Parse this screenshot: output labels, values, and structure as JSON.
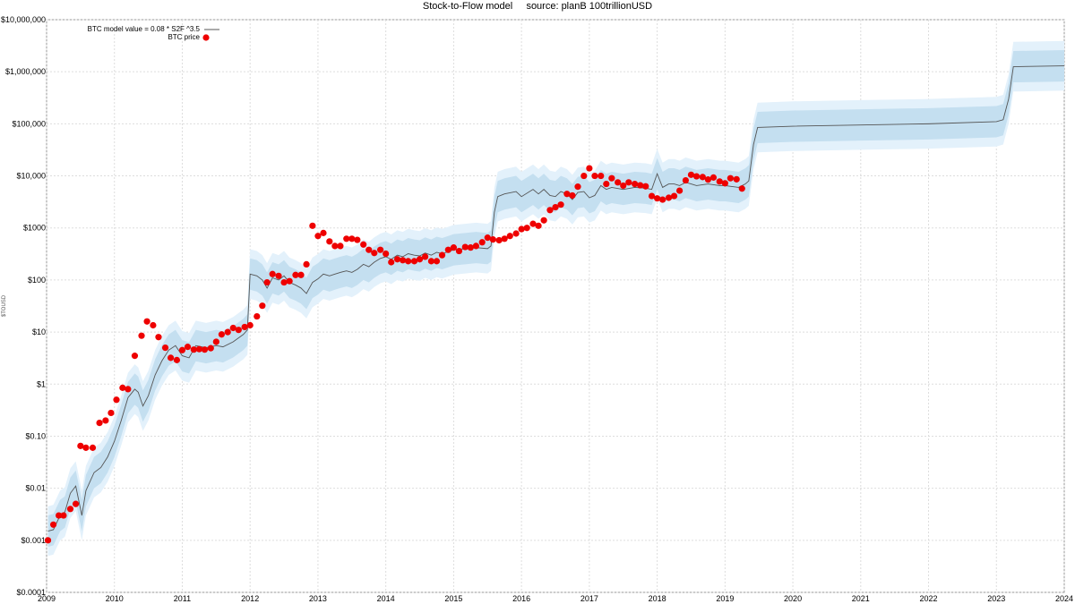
{
  "chart_data": {
    "type": "scatter",
    "title": "Stock-to-Flow model     source: planB 100trillionUSD",
    "ylabel": "$TOUSD",
    "y_scale": "log",
    "ylim": [
      0.0001,
      10000000
    ],
    "xlim": [
      2009.0,
      2024.0
    ],
    "yticks": [
      {
        "value": 10000000,
        "label": "$10,000,000"
      },
      {
        "value": 1000000,
        "label": "$1,000,000"
      },
      {
        "value": 100000,
        "label": "$100,000"
      },
      {
        "value": 10000,
        "label": "$10,000"
      },
      {
        "value": 1000,
        "label": "$1000"
      },
      {
        "value": 100,
        "label": "$100"
      },
      {
        "value": 10,
        "label": "$10"
      },
      {
        "value": 1,
        "label": "$1"
      },
      {
        "value": 0.1,
        "label": "$0.10"
      },
      {
        "value": 0.01,
        "label": "$0.01"
      },
      {
        "value": 0.001,
        "label": "$0.001"
      },
      {
        "value": 0.0001,
        "label": "$0.0001"
      }
    ],
    "xticks": [
      "2009",
      "2010",
      "2011",
      "2012",
      "2013",
      "2014",
      "2015",
      "2016",
      "2017",
      "2018",
      "2019",
      "2020",
      "2021",
      "2022",
      "2023",
      "2024"
    ],
    "grid": true,
    "legend_position": "top-left",
    "legend": [
      {
        "label": "BTC model value = 0.08 * S2F ^3.5",
        "kind": "line"
      },
      {
        "label": "BTC price",
        "kind": "dot"
      }
    ],
    "colors": {
      "price": "#ee0000",
      "model_line": "#555555",
      "band_outer": "#e3f1fb",
      "band_inner": "#c4dff0",
      "grid": "#dddddd"
    },
    "series": [
      {
        "name": "BTC price",
        "kind": "scatter",
        "points": [
          [
            2009.02,
            0.001
          ],
          [
            2009.1,
            0.002
          ],
          [
            2009.18,
            0.003
          ],
          [
            2009.25,
            0.003
          ],
          [
            2009.35,
            0.004
          ],
          [
            2009.43,
            0.005
          ],
          [
            2009.5,
            0.065
          ],
          [
            2009.58,
            0.06
          ],
          [
            2009.68,
            0.06
          ],
          [
            2009.78,
            0.18
          ],
          [
            2009.87,
            0.2
          ],
          [
            2009.95,
            0.28
          ],
          [
            2010.03,
            0.5
          ],
          [
            2010.12,
            0.85
          ],
          [
            2010.2,
            0.8
          ],
          [
            2010.3,
            3.5
          ],
          [
            2010.4,
            8.5
          ],
          [
            2010.48,
            16
          ],
          [
            2010.57,
            13.5
          ],
          [
            2010.65,
            8
          ],
          [
            2010.75,
            5
          ],
          [
            2010.83,
            3.2
          ],
          [
            2010.92,
            2.9
          ],
          [
            2011.0,
            4.5
          ],
          [
            2011.08,
            5.2
          ],
          [
            2011.17,
            4.6
          ],
          [
            2011.25,
            4.7
          ],
          [
            2011.33,
            4.6
          ],
          [
            2011.42,
            4.9
          ],
          [
            2011.5,
            6.5
          ],
          [
            2011.58,
            9
          ],
          [
            2011.67,
            10
          ],
          [
            2011.75,
            12
          ],
          [
            2011.83,
            11
          ],
          [
            2011.92,
            12.5
          ],
          [
            2012.0,
            13.5
          ],
          [
            2012.1,
            20
          ],
          [
            2012.18,
            32
          ],
          [
            2012.25,
            90
          ],
          [
            2012.33,
            130
          ],
          [
            2012.42,
            120
          ],
          [
            2012.5,
            90
          ],
          [
            2012.58,
            95
          ],
          [
            2012.67,
            125
          ],
          [
            2012.75,
            125
          ],
          [
            2012.83,
            200
          ],
          [
            2012.92,
            1100
          ],
          [
            2013.0,
            700
          ],
          [
            2013.08,
            800
          ],
          [
            2013.17,
            550
          ],
          [
            2013.25,
            450
          ],
          [
            2013.33,
            450
          ],
          [
            2013.42,
            620
          ],
          [
            2013.5,
            620
          ],
          [
            2013.58,
            590
          ],
          [
            2013.67,
            480
          ],
          [
            2013.75,
            380
          ],
          [
            2013.83,
            330
          ],
          [
            2013.92,
            380
          ],
          [
            2014.0,
            320
          ],
          [
            2014.08,
            220
          ],
          [
            2014.17,
            250
          ],
          [
            2014.25,
            240
          ],
          [
            2014.33,
            230
          ],
          [
            2014.42,
            230
          ],
          [
            2014.5,
            250
          ],
          [
            2014.58,
            280
          ],
          [
            2014.67,
            230
          ],
          [
            2014.75,
            230
          ],
          [
            2014.83,
            300
          ],
          [
            2014.92,
            380
          ],
          [
            2015.0,
            420
          ],
          [
            2015.08,
            360
          ],
          [
            2015.17,
            430
          ],
          [
            2015.25,
            420
          ],
          [
            2015.33,
            450
          ],
          [
            2015.42,
            530
          ],
          [
            2015.5,
            650
          ],
          [
            2015.58,
            600
          ],
          [
            2015.67,
            580
          ],
          [
            2015.75,
            620
          ],
          [
            2015.83,
            700
          ],
          [
            2015.92,
            780
          ],
          [
            2016.0,
            950
          ],
          [
            2016.08,
            1000
          ],
          [
            2016.17,
            1200
          ],
          [
            2016.25,
            1100
          ],
          [
            2016.33,
            1400
          ],
          [
            2016.42,
            2200
          ],
          [
            2016.5,
            2500
          ],
          [
            2016.58,
            2800
          ],
          [
            2016.67,
            4500
          ],
          [
            2016.75,
            4200
          ],
          [
            2016.83,
            6200
          ],
          [
            2016.92,
            10000
          ],
          [
            2017.0,
            14000
          ],
          [
            2017.08,
            10000
          ],
          [
            2017.17,
            10000
          ],
          [
            2017.25,
            7000
          ],
          [
            2017.33,
            9000
          ],
          [
            2017.42,
            7500
          ],
          [
            2017.5,
            6500
          ],
          [
            2017.58,
            7500
          ],
          [
            2017.67,
            7000
          ],
          [
            2017.75,
            6600
          ],
          [
            2017.83,
            6300
          ],
          [
            2017.92,
            4100
          ],
          [
            2018.0,
            3700
          ],
          [
            2018.08,
            3500
          ],
          [
            2018.17,
            3800
          ],
          [
            2018.25,
            4100
          ],
          [
            2018.33,
            5200
          ],
          [
            2018.42,
            8200
          ],
          [
            2018.5,
            10500
          ],
          [
            2018.58,
            9800
          ],
          [
            2018.67,
            9500
          ],
          [
            2018.75,
            8500
          ],
          [
            2018.83,
            9300
          ],
          [
            2018.92,
            7800
          ],
          [
            2019.0,
            7200
          ],
          [
            2019.08,
            9000
          ],
          [
            2019.17,
            8600
          ],
          [
            2019.25,
            5700
          ]
        ]
      },
      {
        "name": "BTC model value = 0.08 * S2F ^3.5",
        "kind": "line",
        "points": [
          [
            2009.02,
            0.0015
          ],
          [
            2009.1,
            0.0016
          ],
          [
            2009.2,
            0.003
          ],
          [
            2009.27,
            0.0035
          ],
          [
            2009.35,
            0.008
          ],
          [
            2009.43,
            0.011
          ],
          [
            2009.52,
            0.003
          ],
          [
            2009.58,
            0.009
          ],
          [
            2009.7,
            0.02
          ],
          [
            2009.8,
            0.025
          ],
          [
            2009.9,
            0.04
          ],
          [
            2010.0,
            0.08
          ],
          [
            2010.1,
            0.2
          ],
          [
            2010.2,
            0.55
          ],
          [
            2010.3,
            0.8
          ],
          [
            2010.35,
            0.7
          ],
          [
            2010.42,
            0.38
          ],
          [
            2010.5,
            0.6
          ],
          [
            2010.6,
            1.5
          ],
          [
            2010.7,
            2.8
          ],
          [
            2010.8,
            4.5
          ],
          [
            2010.9,
            5.5
          ],
          [
            2011.0,
            3.5
          ],
          [
            2011.1,
            3.2
          ],
          [
            2011.2,
            5.5
          ],
          [
            2011.35,
            5.0
          ],
          [
            2011.5,
            5.5
          ],
          [
            2011.6,
            5.2
          ],
          [
            2011.75,
            6.5
          ],
          [
            2011.9,
            9
          ],
          [
            2011.96,
            11
          ],
          [
            2012.0,
            130
          ],
          [
            2012.1,
            120
          ],
          [
            2012.18,
            100
          ],
          [
            2012.25,
            70
          ],
          [
            2012.33,
            110
          ],
          [
            2012.42,
            100
          ],
          [
            2012.5,
            120
          ],
          [
            2012.58,
            90
          ],
          [
            2012.67,
            80
          ],
          [
            2012.75,
            70
          ],
          [
            2012.83,
            55
          ],
          [
            2012.92,
            90
          ],
          [
            2013.0,
            105
          ],
          [
            2013.08,
            130
          ],
          [
            2013.17,
            120
          ],
          [
            2013.25,
            130
          ],
          [
            2013.33,
            140
          ],
          [
            2013.42,
            150
          ],
          [
            2013.5,
            140
          ],
          [
            2013.58,
            160
          ],
          [
            2013.67,
            200
          ],
          [
            2013.75,
            180
          ],
          [
            2013.83,
            220
          ],
          [
            2013.92,
            260
          ],
          [
            2014.0,
            280
          ],
          [
            2014.08,
            250
          ],
          [
            2014.17,
            300
          ],
          [
            2014.25,
            280
          ],
          [
            2014.33,
            320
          ],
          [
            2014.42,
            300
          ],
          [
            2014.5,
            290
          ],
          [
            2014.58,
            330
          ],
          [
            2014.67,
            300
          ],
          [
            2014.75,
            340
          ],
          [
            2014.83,
            320
          ],
          [
            2014.92,
            350
          ],
          [
            2015.0,
            380
          ],
          [
            2015.17,
            400
          ],
          [
            2015.33,
            420
          ],
          [
            2015.5,
            400
          ],
          [
            2015.55,
            450
          ],
          [
            2015.6,
            2000
          ],
          [
            2015.65,
            4000
          ],
          [
            2015.75,
            4500
          ],
          [
            2015.92,
            5000
          ],
          [
            2016.0,
            4000
          ],
          [
            2016.17,
            5500
          ],
          [
            2016.25,
            4500
          ],
          [
            2016.33,
            5500
          ],
          [
            2016.42,
            4200
          ],
          [
            2016.5,
            4000
          ],
          [
            2016.58,
            5000
          ],
          [
            2016.67,
            4500
          ],
          [
            2016.75,
            3500
          ],
          [
            2016.83,
            4800
          ],
          [
            2016.92,
            5000
          ],
          [
            2017.0,
            3800
          ],
          [
            2017.08,
            4200
          ],
          [
            2017.17,
            6500
          ],
          [
            2017.25,
            5500
          ],
          [
            2017.33,
            6000
          ],
          [
            2017.5,
            5500
          ],
          [
            2017.67,
            6000
          ],
          [
            2017.83,
            5800
          ],
          [
            2017.92,
            5500
          ],
          [
            2018.0,
            11000
          ],
          [
            2018.08,
            6000
          ],
          [
            2018.17,
            7000
          ],
          [
            2018.25,
            7000
          ],
          [
            2018.33,
            6500
          ],
          [
            2018.42,
            7500
          ],
          [
            2018.5,
            7000
          ],
          [
            2018.58,
            6500
          ],
          [
            2018.75,
            7000
          ],
          [
            2018.92,
            6500
          ],
          [
            2019.0,
            6500
          ],
          [
            2019.2,
            6000
          ],
          [
            2019.3,
            7000
          ],
          [
            2019.35,
            8000
          ],
          [
            2019.42,
            40000
          ],
          [
            2019.48,
            85000
          ],
          [
            2020.0,
            90000
          ],
          [
            2021.0,
            95000
          ],
          [
            2022.0,
            100000
          ],
          [
            2023.0,
            110000
          ],
          [
            2023.1,
            120000
          ],
          [
            2023.18,
            300000
          ],
          [
            2023.25,
            1250000
          ],
          [
            2024.0,
            1300000
          ]
        ]
      }
    ]
  }
}
